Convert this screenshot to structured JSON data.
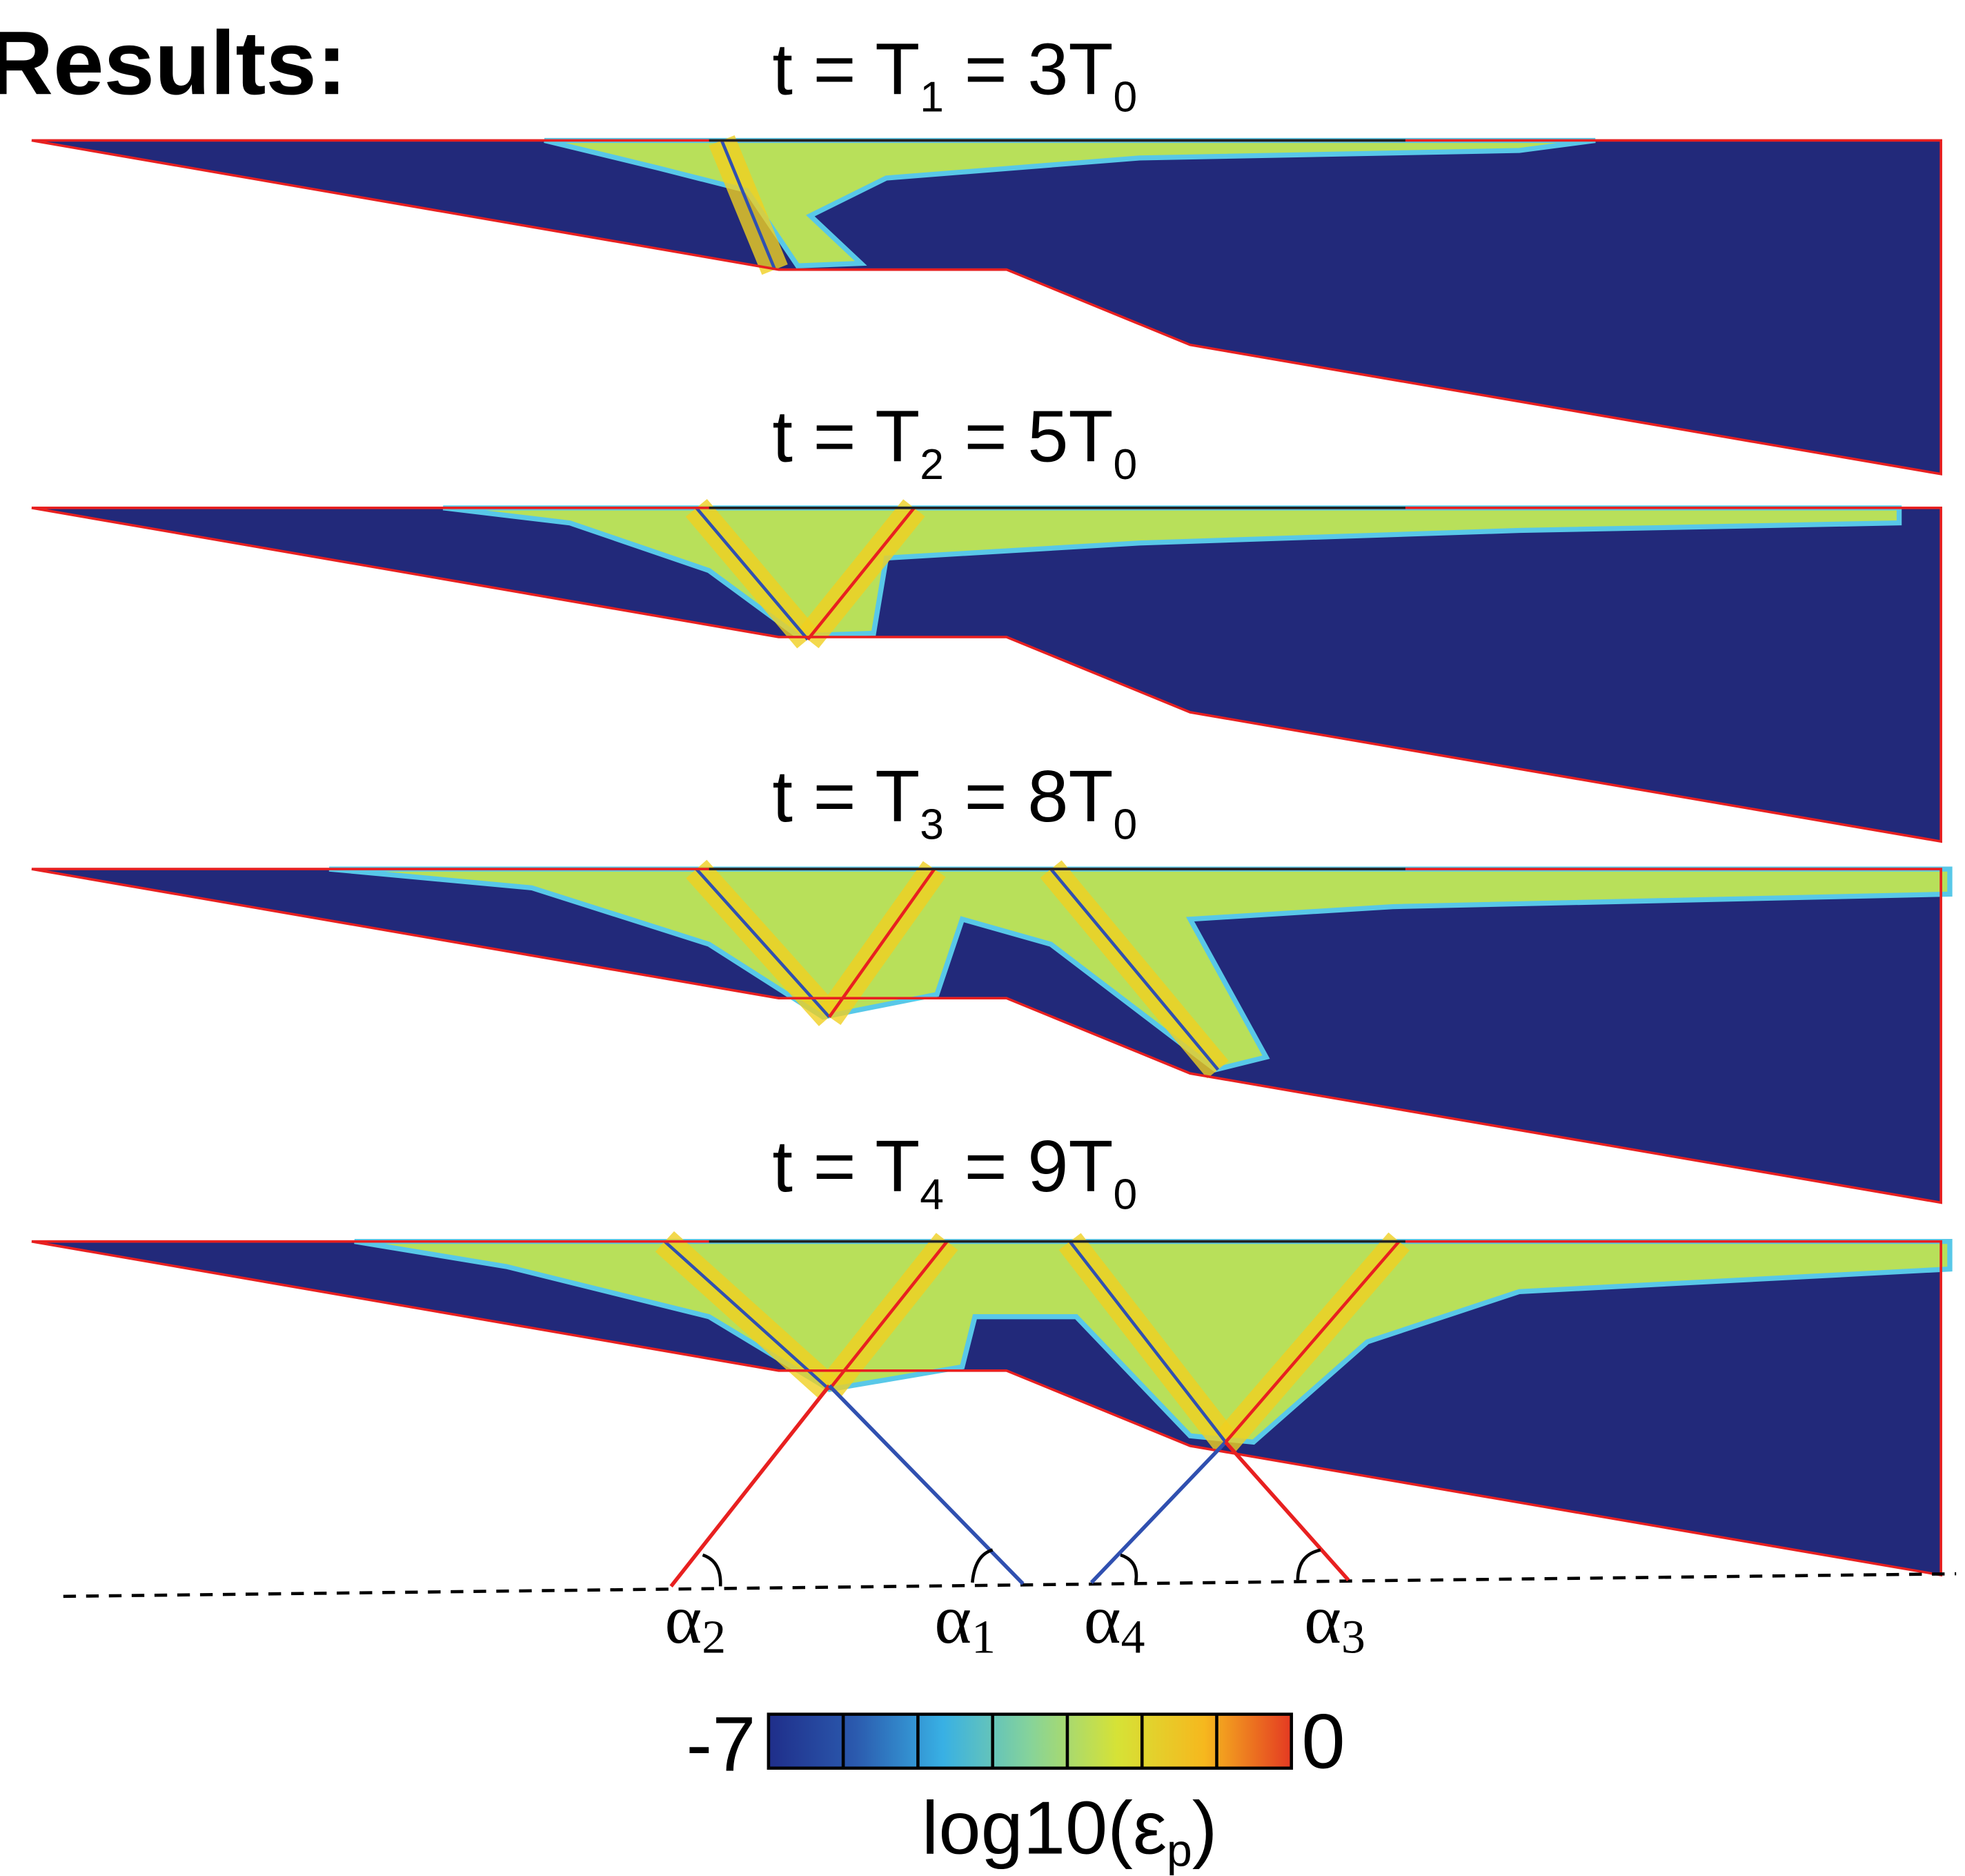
{
  "header": {
    "title": "Results",
    "colon": ":"
  },
  "panels": [
    {
      "label": {
        "lead": "t = T",
        "index": "1",
        "mid": " = 3T",
        "base": "0"
      }
    },
    {
      "label": {
        "lead": "t = T",
        "index": "2",
        "mid": " = 5T",
        "base": "0"
      }
    },
    {
      "label": {
        "lead": "t = T",
        "index": "3",
        "mid": " = 8T",
        "base": "0"
      }
    },
    {
      "label": {
        "lead": "t = T",
        "index": "4",
        "mid": " = 9T",
        "base": "0"
      }
    }
  ],
  "angles": [
    {
      "symbol": "α",
      "index": "2"
    },
    {
      "symbol": "α",
      "index": "1"
    },
    {
      "symbol": "α",
      "index": "4"
    },
    {
      "symbol": "α",
      "index": "3"
    }
  ],
  "colorbar": {
    "min": -7,
    "max": 0,
    "label": {
      "main": "log10(ε",
      "sub": "p",
      "close": ")"
    }
  }
}
